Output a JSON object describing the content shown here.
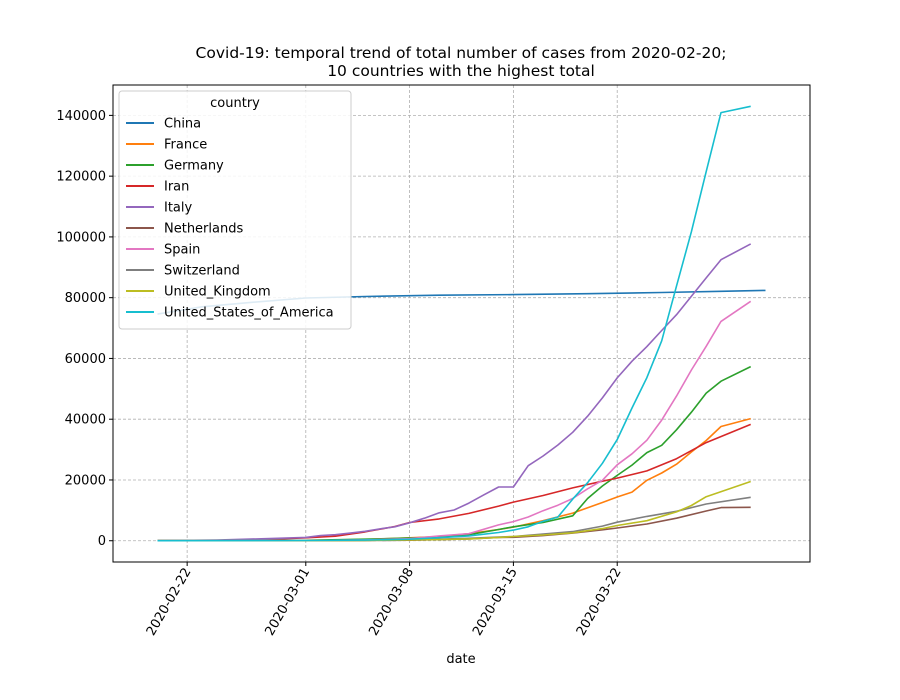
{
  "chart_data": {
    "type": "line",
    "title_line1": "Covid-19: temporal trend of total number of cases from 2020-02-20;",
    "title_line2": "10 countries with the highest total",
    "xlabel": "date",
    "ylabel": "",
    "xlim": [
      "2020-02-17",
      "2020-04-04"
    ],
    "ylim": [
      -7000,
      150000
    ],
    "grid": true,
    "grid_style": "dashed",
    "x_ticks": [
      "2020-02-22",
      "2020-03-01",
      "2020-03-08",
      "2020-03-15",
      "2020-03-22"
    ],
    "y_ticks": [
      0,
      20000,
      40000,
      60000,
      80000,
      100000,
      120000,
      140000
    ],
    "legend": {
      "title": "country",
      "placement": "top-left"
    },
    "series": [
      {
        "name": "China",
        "color": "#1f77b4",
        "points": [
          [
            "2020-02-20",
            74600
          ],
          [
            "2020-02-23",
            77000
          ],
          [
            "2020-02-26",
            78300
          ],
          [
            "2020-03-01",
            79900
          ],
          [
            "2020-03-05",
            80400
          ],
          [
            "2020-03-10",
            80800
          ],
          [
            "2020-03-15",
            81000
          ],
          [
            "2020-03-20",
            81300
          ],
          [
            "2020-03-25",
            81700
          ],
          [
            "2020-03-29",
            82100
          ],
          [
            "2020-04-01",
            82400
          ]
        ]
      },
      {
        "name": "France",
        "color": "#ff7f0e",
        "points": [
          [
            "2020-02-20",
            12
          ],
          [
            "2020-03-01",
            130
          ],
          [
            "2020-03-05",
            400
          ],
          [
            "2020-03-08",
            950
          ],
          [
            "2020-03-10",
            1400
          ],
          [
            "2020-03-12",
            2300
          ],
          [
            "2020-03-14",
            3700
          ],
          [
            "2020-03-15",
            4500
          ],
          [
            "2020-03-17",
            6600
          ],
          [
            "2020-03-19",
            9100
          ],
          [
            "2020-03-21",
            12600
          ],
          [
            "2020-03-22",
            14400
          ],
          [
            "2020-03-23",
            16000
          ],
          [
            "2020-03-24",
            19900
          ],
          [
            "2020-03-25",
            22300
          ],
          [
            "2020-03-26",
            25200
          ],
          [
            "2020-03-27",
            29200
          ],
          [
            "2020-03-28",
            33000
          ],
          [
            "2020-03-29",
            37600
          ],
          [
            "2020-03-31",
            40200
          ]
        ]
      },
      {
        "name": "Germany",
        "color": "#2ca02c",
        "points": [
          [
            "2020-02-20",
            16
          ],
          [
            "2020-03-01",
            130
          ],
          [
            "2020-03-05",
            500
          ],
          [
            "2020-03-08",
            900
          ],
          [
            "2020-03-10",
            1200
          ],
          [
            "2020-03-12",
            2000
          ],
          [
            "2020-03-14",
            3700
          ],
          [
            "2020-03-15",
            4600
          ],
          [
            "2020-03-17",
            6000
          ],
          [
            "2020-03-19",
            8200
          ],
          [
            "2020-03-20",
            13900
          ],
          [
            "2020-03-21",
            18000
          ],
          [
            "2020-03-22",
            21500
          ],
          [
            "2020-03-23",
            24900
          ],
          [
            "2020-03-24",
            29000
          ],
          [
            "2020-03-25",
            31400
          ],
          [
            "2020-03-26",
            36500
          ],
          [
            "2020-03-27",
            42300
          ],
          [
            "2020-03-28",
            48600
          ],
          [
            "2020-03-29",
            52500
          ],
          [
            "2020-03-31",
            57300
          ]
        ]
      },
      {
        "name": "Iran",
        "color": "#d62728",
        "points": [
          [
            "2020-02-20",
            2
          ],
          [
            "2020-02-26",
            140
          ],
          [
            "2020-03-01",
            980
          ],
          [
            "2020-03-03",
            1500
          ],
          [
            "2020-03-05",
            2900
          ],
          [
            "2020-03-07",
            4700
          ],
          [
            "2020-03-08",
            6000
          ],
          [
            "2020-03-10",
            7200
          ],
          [
            "2020-03-12",
            9000
          ],
          [
            "2020-03-14",
            11400
          ],
          [
            "2020-03-15",
            12700
          ],
          [
            "2020-03-17",
            14900
          ],
          [
            "2020-03-19",
            17400
          ],
          [
            "2020-03-21",
            19600
          ],
          [
            "2020-03-22",
            20600
          ],
          [
            "2020-03-24",
            23000
          ],
          [
            "2020-03-26",
            27000
          ],
          [
            "2020-03-28",
            32300
          ],
          [
            "2020-03-31",
            38300
          ]
        ]
      },
      {
        "name": "Italy",
        "color": "#9467bd",
        "points": [
          [
            "2020-02-20",
            3
          ],
          [
            "2020-02-24",
            230
          ],
          [
            "2020-02-27",
            650
          ],
          [
            "2020-03-01",
            1100
          ],
          [
            "2020-03-02",
            1700
          ],
          [
            "2020-03-03",
            2000
          ],
          [
            "2020-03-04",
            2500
          ],
          [
            "2020-03-05",
            3100
          ],
          [
            "2020-03-06",
            3900
          ],
          [
            "2020-03-07",
            4600
          ],
          [
            "2020-03-08",
            5900
          ],
          [
            "2020-03-09",
            7400
          ],
          [
            "2020-03-10",
            9200
          ],
          [
            "2020-03-11",
            10100
          ],
          [
            "2020-03-12",
            12400
          ],
          [
            "2020-03-13",
            15100
          ],
          [
            "2020-03-14",
            17700
          ],
          [
            "2020-03-15",
            17700
          ],
          [
            "2020-03-16",
            24700
          ],
          [
            "2020-03-17",
            27900
          ],
          [
            "2020-03-18",
            31500
          ],
          [
            "2020-03-19",
            35700
          ],
          [
            "2020-03-20",
            41000
          ],
          [
            "2020-03-21",
            47000
          ],
          [
            "2020-03-22",
            53600
          ],
          [
            "2020-03-23",
            59100
          ],
          [
            "2020-03-24",
            63900
          ],
          [
            "2020-03-25",
            69200
          ],
          [
            "2020-03-26",
            74400
          ],
          [
            "2020-03-27",
            80500
          ],
          [
            "2020-03-28",
            86500
          ],
          [
            "2020-03-29",
            92500
          ],
          [
            "2020-03-31",
            97700
          ]
        ]
      },
      {
        "name": "Netherlands",
        "color": "#8c564b",
        "points": [
          [
            "2020-02-20",
            0
          ],
          [
            "2020-03-01",
            10
          ],
          [
            "2020-03-05",
            80
          ],
          [
            "2020-03-08",
            190
          ],
          [
            "2020-03-10",
            380
          ],
          [
            "2020-03-12",
            600
          ],
          [
            "2020-03-14",
            1100
          ],
          [
            "2020-03-15",
            1140
          ],
          [
            "2020-03-17",
            1700
          ],
          [
            "2020-03-19",
            2500
          ],
          [
            "2020-03-21",
            3600
          ],
          [
            "2020-03-22",
            4200
          ],
          [
            "2020-03-24",
            5500
          ],
          [
            "2020-03-26",
            7400
          ],
          [
            "2020-03-28",
            9800
          ],
          [
            "2020-03-29",
            10900
          ],
          [
            "2020-03-31",
            11000
          ]
        ]
      },
      {
        "name": "Spain",
        "color": "#e377c2",
        "points": [
          [
            "2020-02-20",
            2
          ],
          [
            "2020-03-01",
            80
          ],
          [
            "2020-03-05",
            260
          ],
          [
            "2020-03-08",
            670
          ],
          [
            "2020-03-10",
            1600
          ],
          [
            "2020-03-12",
            2300
          ],
          [
            "2020-03-14",
            5200
          ],
          [
            "2020-03-15",
            6300
          ],
          [
            "2020-03-16",
            7800
          ],
          [
            "2020-03-17",
            9900
          ],
          [
            "2020-03-18",
            11700
          ],
          [
            "2020-03-19",
            13900
          ],
          [
            "2020-03-20",
            17100
          ],
          [
            "2020-03-21",
            19900
          ],
          [
            "2020-03-22",
            25000
          ],
          [
            "2020-03-23",
            28600
          ],
          [
            "2020-03-24",
            33100
          ],
          [
            "2020-03-25",
            39700
          ],
          [
            "2020-03-26",
            47600
          ],
          [
            "2020-03-27",
            56200
          ],
          [
            "2020-03-28",
            64000
          ],
          [
            "2020-03-29",
            72200
          ],
          [
            "2020-03-31",
            78800
          ]
        ]
      },
      {
        "name": "Switzerland",
        "color": "#7f7f7f",
        "points": [
          [
            "2020-02-20",
            0
          ],
          [
            "2020-03-01",
            20
          ],
          [
            "2020-03-05",
            100
          ],
          [
            "2020-03-08",
            330
          ],
          [
            "2020-03-10",
            500
          ],
          [
            "2020-03-12",
            800
          ],
          [
            "2020-03-14",
            1200
          ],
          [
            "2020-03-15",
            1400
          ],
          [
            "2020-03-17",
            2200
          ],
          [
            "2020-03-19",
            3000
          ],
          [
            "2020-03-21",
            4800
          ],
          [
            "2020-03-22",
            6100
          ],
          [
            "2020-03-24",
            8000
          ],
          [
            "2020-03-26",
            9700
          ],
          [
            "2020-03-28",
            12100
          ],
          [
            "2020-03-31",
            14300
          ]
        ]
      },
      {
        "name": "United_Kingdom",
        "color": "#bcbd22",
        "points": [
          [
            "2020-02-20",
            9
          ],
          [
            "2020-03-01",
            35
          ],
          [
            "2020-03-05",
            110
          ],
          [
            "2020-03-08",
            270
          ],
          [
            "2020-03-10",
            380
          ],
          [
            "2020-03-12",
            600
          ],
          [
            "2020-03-14",
            1100
          ],
          [
            "2020-03-15",
            1400
          ],
          [
            "2020-03-17",
            1900
          ],
          [
            "2020-03-19",
            2600
          ],
          [
            "2020-03-21",
            4000
          ],
          [
            "2020-03-22",
            5000
          ],
          [
            "2020-03-24",
            6600
          ],
          [
            "2020-03-26",
            9500
          ],
          [
            "2020-03-27",
            11600
          ],
          [
            "2020-03-28",
            14500
          ],
          [
            "2020-03-31",
            19500
          ]
        ]
      },
      {
        "name": "United_States_of_America",
        "color": "#17becf",
        "points": [
          [
            "2020-02-20",
            15
          ],
          [
            "2020-03-01",
            70
          ],
          [
            "2020-03-05",
            220
          ],
          [
            "2020-03-08",
            500
          ],
          [
            "2020-03-10",
            1000
          ],
          [
            "2020-03-12",
            1600
          ],
          [
            "2020-03-14",
            2700
          ],
          [
            "2020-03-15",
            3500
          ],
          [
            "2020-03-16",
            4600
          ],
          [
            "2020-03-17",
            6400
          ],
          [
            "2020-03-18",
            7800
          ],
          [
            "2020-03-19",
            13700
          ],
          [
            "2020-03-20",
            19100
          ],
          [
            "2020-03-21",
            25500
          ],
          [
            "2020-03-22",
            33300
          ],
          [
            "2020-03-23",
            43700
          ],
          [
            "2020-03-24",
            53700
          ],
          [
            "2020-03-25",
            65800
          ],
          [
            "2020-03-26",
            83800
          ],
          [
            "2020-03-27",
            101700
          ],
          [
            "2020-03-28",
            121500
          ],
          [
            "2020-03-29",
            140900
          ],
          [
            "2020-03-31",
            143000
          ]
        ]
      }
    ]
  }
}
